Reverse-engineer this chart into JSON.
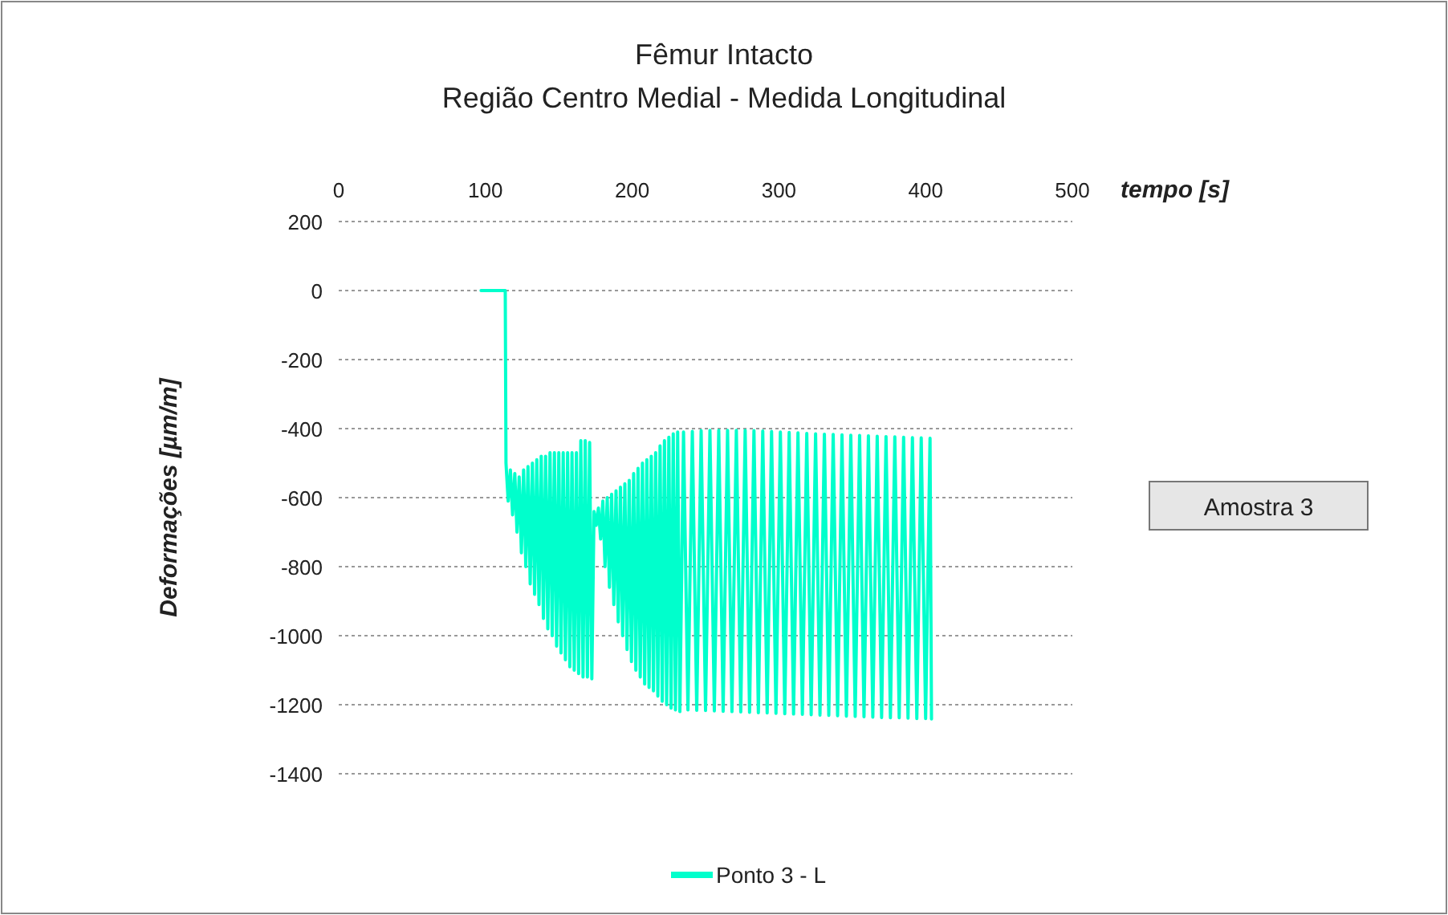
{
  "chart_data": {
    "type": "line",
    "title": "Fêmur Intacto",
    "subtitle": "Região Centro Medial - Medida Longitudinal",
    "xlabel": "tempo [s]",
    "ylabel": "Deformações [µm/m]",
    "annotations": [
      "Amostra 3"
    ],
    "xlim": [
      0,
      500
    ],
    "xticks": [
      0,
      100,
      200,
      300,
      400,
      500
    ],
    "ylim": [
      -1400,
      200
    ],
    "yticks": [
      200,
      0,
      -200,
      -400,
      -600,
      -800,
      -1000,
      -1200,
      -1400
    ],
    "grid": "y",
    "legend": "bottom",
    "marker": "none",
    "line_style": "solid",
    "series": [
      {
        "name": "Ponto 3 - L",
        "color": "#00ffcc",
        "x": [
          97,
          113.5,
          114,
          115.5,
          117,
          118.5,
          120,
          121.5,
          123,
          124.5,
          126,
          127.5,
          129,
          130.5,
          132,
          133.5,
          135,
          136.5,
          138,
          139.5,
          141,
          142.5,
          144,
          145.5,
          147,
          148.5,
          150,
          151.5,
          153,
          154.5,
          156,
          157.5,
          159,
          160.5,
          162,
          163.5,
          165,
          166.5,
          168,
          169.5,
          171,
          172.5,
          174,
          175.5,
          177,
          178.5,
          180,
          181.5,
          183,
          184.5,
          186,
          187.5,
          189,
          190.5,
          192,
          193.5,
          195,
          196.5,
          198,
          199.5,
          201,
          202.5,
          204,
          205.5,
          207,
          208.5,
          210,
          211.5,
          213,
          214.5,
          216,
          217.5,
          219,
          220.5,
          222,
          223.5,
          225,
          226.5,
          228,
          229.5,
          231,
          232.5,
          235,
          238,
          241,
          244,
          247,
          250,
          253,
          256,
          259,
          262,
          265,
          268,
          271,
          274,
          277,
          280,
          283,
          286,
          289,
          292,
          295,
          298,
          301,
          304,
          307,
          310,
          313,
          316,
          319,
          322,
          325,
          328,
          331,
          334,
          337,
          340,
          343,
          346,
          349,
          352,
          355,
          358,
          361,
          364,
          367,
          370,
          373,
          376,
          379,
          382,
          385,
          388,
          391,
          394,
          397,
          400,
          403,
          404
        ],
        "values": [
          0,
          0,
          -500,
          -610,
          -520,
          -650,
          -530,
          -700,
          -540,
          -760,
          -520,
          -800,
          -510,
          -850,
          -500,
          -880,
          -490,
          -910,
          -480,
          -950,
          -480,
          -980,
          -470,
          -1000,
          -470,
          -1030,
          -470,
          -1050,
          -470,
          -1070,
          -470,
          -1090,
          -470,
          -1100,
          -470,
          -1110,
          -435,
          -1120,
          -435,
          -1120,
          -440,
          -1125,
          -640,
          -680,
          -630,
          -720,
          -610,
          -800,
          -600,
          -860,
          -590,
          -910,
          -580,
          -960,
          -570,
          -1000,
          -560,
          -1040,
          -550,
          -1075,
          -530,
          -1100,
          -515,
          -1120,
          -500,
          -1140,
          -490,
          -1150,
          -480,
          -1160,
          -470,
          -1175,
          -450,
          -1190,
          -435,
          -1200,
          -425,
          -1210,
          -415,
          -1215,
          -410,
          -1220,
          -410,
          -1215,
          -408,
          -1216,
          -406,
          -1217,
          -405,
          -1218,
          -405,
          -1219,
          -405,
          -1220,
          -405,
          -1221,
          -405,
          -1222,
          -406,
          -1223,
          -407,
          -1224,
          -408,
          -1225,
          -410,
          -1226,
          -411,
          -1227,
          -412,
          -1228,
          -414,
          -1229,
          -415,
          -1230,
          -416,
          -1231,
          -417,
          -1232,
          -418,
          -1233,
          -419,
          -1234,
          -420,
          -1235,
          -421,
          -1236,
          -422,
          -1237,
          -423,
          -1238,
          -424,
          -1238,
          -425,
          -1239,
          -426,
          -1240,
          -427,
          -1240,
          -428,
          -1241
        ]
      }
    ]
  }
}
